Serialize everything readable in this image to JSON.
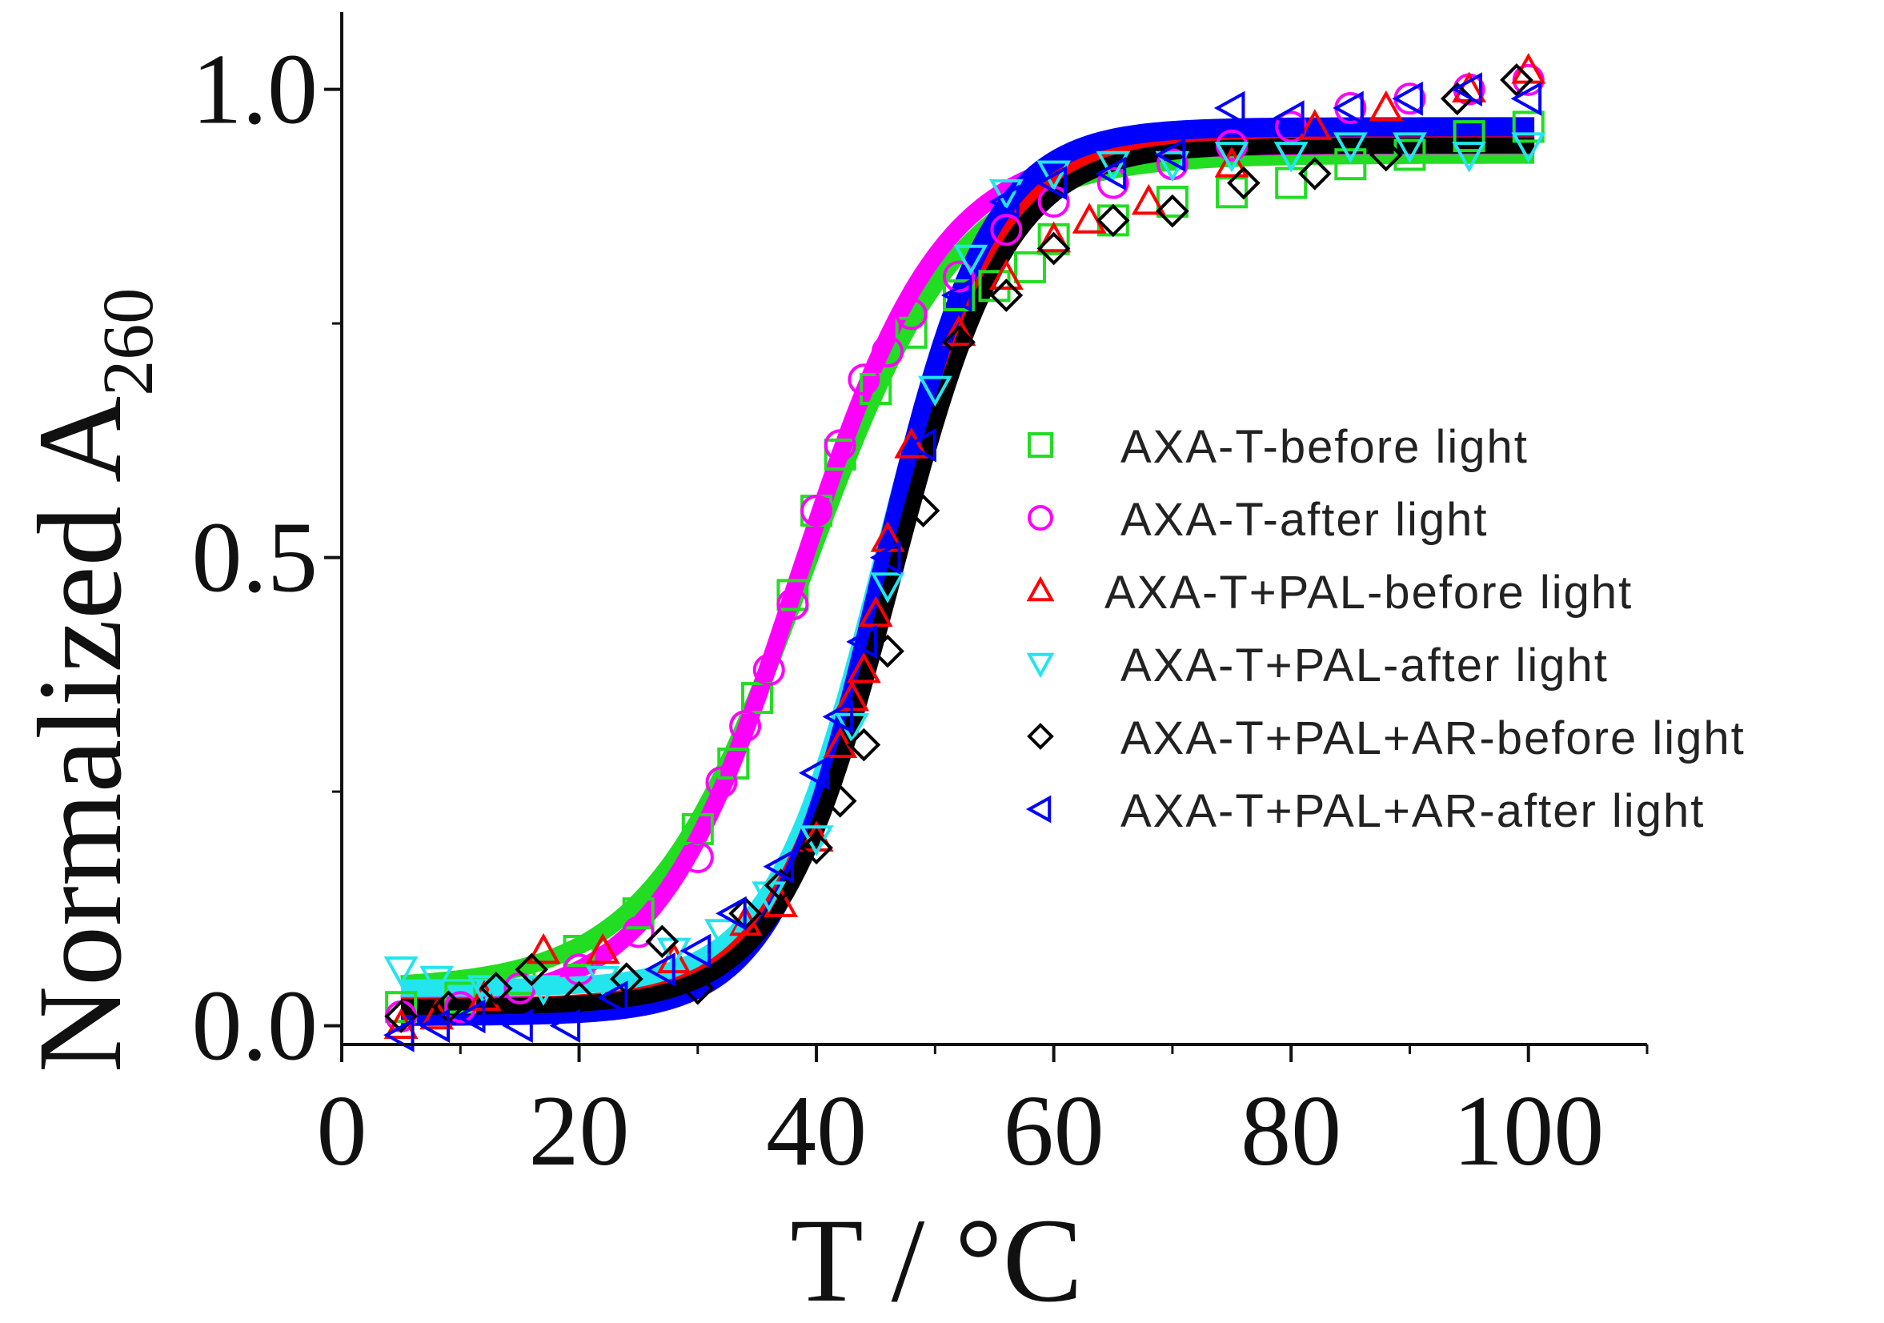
{
  "chart_data": {
    "type": "scatter",
    "title": "",
    "xlabel": "T / °C",
    "ylabel": "Normalized A",
    "ylabel_subscript": "260",
    "xlim": [
      0,
      110
    ],
    "ylim": [
      -0.02,
      1.08
    ],
    "xticks": [
      0,
      20,
      40,
      60,
      80,
      100
    ],
    "yticks": [
      0.0,
      0.5,
      1.0
    ],
    "xtick_labels": [
      "0",
      "20",
      "40",
      "60",
      "80",
      "100"
    ],
    "ytick_labels": [
      "0.0",
      "0.5",
      "1.0"
    ],
    "grid": false,
    "legend_position": "right-middle",
    "series": [
      {
        "name": "AXA-T-before light",
        "marker": "square",
        "color": "#22dd22",
        "x": [
          5,
          10,
          15,
          20,
          25,
          30,
          33,
          35,
          38,
          40,
          42,
          45,
          48,
          52,
          55,
          58,
          60,
          65,
          70,
          75,
          80,
          85,
          90,
          95,
          100
        ],
        "y": [
          0.02,
          0.03,
          0.05,
          0.08,
          0.12,
          0.21,
          0.28,
          0.35,
          0.46,
          0.55,
          0.61,
          0.68,
          0.74,
          0.78,
          0.79,
          0.81,
          0.84,
          0.86,
          0.88,
          0.89,
          0.9,
          0.92,
          0.93,
          0.95,
          0.96
        ],
        "fit": {
          "bottom": 0.04,
          "top": 0.93,
          "tm": 39.0,
          "width": 6.5
        }
      },
      {
        "name": "AXA-T-after light",
        "marker": "circle",
        "color": "#ff00ff",
        "x": [
          5,
          10,
          15,
          20,
          25,
          30,
          32,
          34,
          36,
          38,
          40,
          42,
          44,
          46,
          48,
          52,
          56,
          60,
          65,
          70,
          75,
          80,
          85,
          90,
          95,
          100
        ],
        "y": [
          0.01,
          0.02,
          0.04,
          0.06,
          0.1,
          0.18,
          0.26,
          0.32,
          0.38,
          0.45,
          0.55,
          0.62,
          0.69,
          0.72,
          0.76,
          0.8,
          0.85,
          0.88,
          0.9,
          0.92,
          0.94,
          0.96,
          0.98,
          0.99,
          1.0,
          1.01
        ],
        "fit": {
          "bottom": 0.02,
          "top": 0.94,
          "tm": 38.5,
          "width": 6.0
        }
      },
      {
        "name": "AXA-T+PAL-before light",
        "marker": "triangle-up",
        "color": "#ff0000",
        "x": [
          5,
          8,
          12,
          17,
          22,
          28,
          34,
          37,
          40,
          42,
          43,
          44,
          45,
          46,
          48,
          52,
          56,
          60,
          63,
          68,
          75,
          82,
          88,
          95,
          100
        ],
        "y": [
          0.0,
          0.01,
          0.03,
          0.08,
          0.08,
          0.07,
          0.11,
          0.13,
          0.2,
          0.3,
          0.35,
          0.38,
          0.44,
          0.52,
          0.62,
          0.74,
          0.8,
          0.84,
          0.86,
          0.88,
          0.92,
          0.96,
          0.98,
          1.0,
          1.02
        ],
        "fit": {
          "bottom": 0.02,
          "top": 0.95,
          "tm": 46.0,
          "width": 4.8
        }
      },
      {
        "name": "AXA-T+PAL-after light",
        "marker": "triangle-down",
        "color": "#22e5ee",
        "x": [
          5,
          8,
          12,
          17,
          22,
          28,
          32,
          36,
          40,
          43,
          46,
          50,
          53,
          56,
          60,
          65,
          70,
          75,
          80,
          85,
          90,
          95,
          100
        ],
        "y": [
          0.06,
          0.05,
          0.04,
          0.04,
          0.05,
          0.08,
          0.1,
          0.14,
          0.2,
          0.32,
          0.47,
          0.68,
          0.82,
          0.89,
          0.91,
          0.92,
          0.92,
          0.93,
          0.93,
          0.94,
          0.94,
          0.93,
          0.94
        ],
        "fit": {
          "bottom": 0.04,
          "top": 0.95,
          "tm": 45.5,
          "width": 4.6
        }
      },
      {
        "name": "AXA-T+PAL+AR-before light",
        "marker": "diamond",
        "color": "#000000",
        "x": [
          5,
          9,
          13,
          16,
          20,
          24,
          27,
          30,
          34,
          37,
          40,
          42,
          44,
          46,
          49,
          52,
          56,
          60,
          65,
          70,
          76,
          82,
          88,
          94,
          99
        ],
        "y": [
          0.01,
          0.02,
          0.04,
          0.06,
          0.03,
          0.05,
          0.09,
          0.04,
          0.12,
          0.15,
          0.19,
          0.24,
          0.3,
          0.4,
          0.55,
          0.73,
          0.78,
          0.83,
          0.86,
          0.87,
          0.9,
          0.91,
          0.93,
          0.99,
          1.01
        ],
        "fit": {
          "bottom": 0.02,
          "top": 0.94,
          "tm": 46.5,
          "width": 4.8
        }
      },
      {
        "name": "AXA-T+PAL+AR-after light",
        "marker": "triangle-left",
        "color": "#0000ff",
        "x": [
          5,
          8,
          11,
          15,
          19,
          23,
          27,
          30,
          33,
          37,
          40,
          42,
          44,
          46,
          49,
          52,
          56,
          60,
          65,
          70,
          75,
          80,
          85,
          90,
          95,
          100
        ],
        "y": [
          -0.01,
          0.0,
          0.01,
          0.0,
          0.0,
          0.03,
          0.06,
          0.08,
          0.12,
          0.17,
          0.27,
          0.33,
          0.41,
          0.5,
          0.62,
          0.78,
          0.88,
          0.9,
          0.91,
          0.93,
          0.98,
          0.97,
          0.98,
          0.99,
          1.0,
          0.99
        ],
        "fit": {
          "bottom": 0.01,
          "top": 0.96,
          "tm": 45.5,
          "width": 4.5
        }
      }
    ]
  }
}
